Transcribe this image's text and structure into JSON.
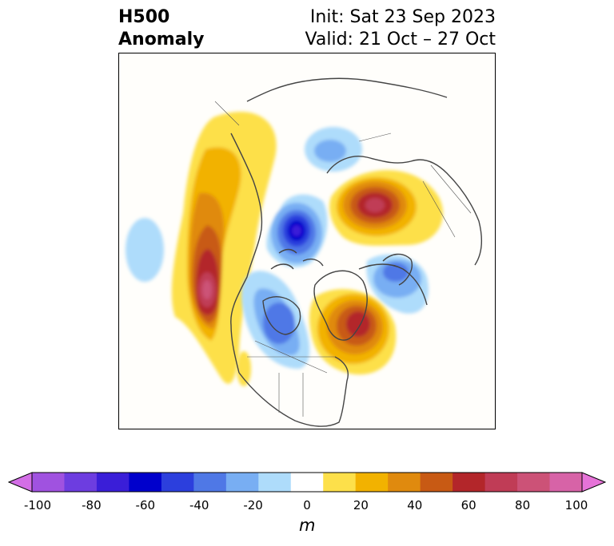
{
  "header": {
    "title_line1": "H500",
    "title_line2": "Anomaly",
    "init_text": "Init: Sat 23 Sep 2023",
    "valid_text": "Valid: 21 Oct – 27 Oct"
  },
  "colorbar": {
    "unit": "m",
    "tick_labels": [
      "-100",
      "-80",
      "-60",
      "-40",
      "-20",
      "0",
      "20",
      "40",
      "60",
      "80",
      "100"
    ],
    "colors": [
      "#d36ee6",
      "#a052e0",
      "#6d3de0",
      "#3a1ed8",
      "#0000cc",
      "#2c3fdd",
      "#4f78e6",
      "#78aef3",
      "#aedcfb",
      "#ffffff",
      "#fde04a",
      "#f2b200",
      "#e08a0e",
      "#c85a14",
      "#b3262a",
      "#c03c56",
      "#cc5277",
      "#d763a7",
      "#e673d8"
    ]
  },
  "map": {
    "projection": "north-polar-stereographic",
    "coastline_color": "#444444"
  }
}
